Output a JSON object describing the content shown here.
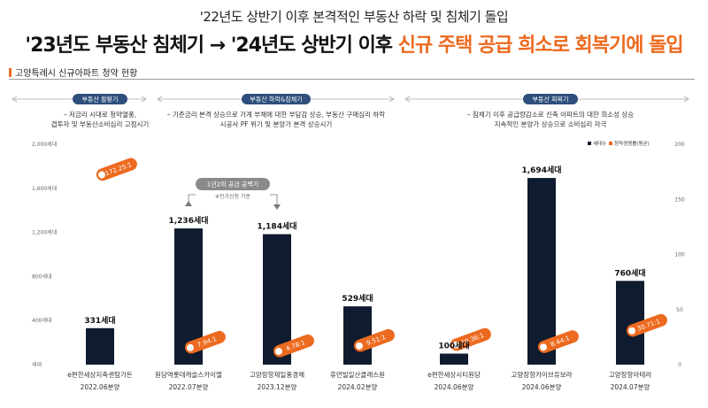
{
  "header": {
    "subtitle": "'22년도 상반기 이후 본격적인 부동산 하락 및 침체기 돌입",
    "headline_main": "'23년도 부동산 침체기 → '24년도 상반기 이후 ",
    "headline_accent": "신규 주택 공급 희소로 회복기에 돌입",
    "section_label": "고양특례시 신규아파트 청약 현황"
  },
  "colors": {
    "accent": "#ec6a1f",
    "bar": "#0f1b2e",
    "pill": "#2e4f7c"
  },
  "phases": [
    {
      "label": "부동산 활황기",
      "desc": [
        "– 저금리 시대로 청약열풍,",
        "갭투자 및 부동산소비심리 고점시기"
      ]
    },
    {
      "label": "부동산 하락&침체기",
      "desc": [
        "– 기준금리 본격 상승으로 가계 부채에 대한 부담감 상승, 부동산 구매심리 하락",
        "시공사 PF 위기 및 분양가 본격 상승시기"
      ]
    },
    {
      "label": "부동산 회복기",
      "desc": [
        "– 침체기 이후 공급량감소로 신축 아파트의 대한 희소성 상승",
        "지속적인 분양가 상승으로 소비심리 자극"
      ]
    }
  ],
  "callout": {
    "title": "1년2의 공급 공백기",
    "sub": "※인가신청 기준"
  },
  "chart_data": {
    "type": "bar",
    "legend": [
      "세대수",
      "청약경쟁률(평균)"
    ],
    "y_left": {
      "ticks": [
        "2,000세대",
        "1,600세대",
        "1,200세대",
        "800세대",
        "400세대",
        "세대"
      ],
      "range": [
        0,
        2000
      ]
    },
    "y_right": {
      "ticks": [
        "200",
        "150",
        "100",
        "50",
        "0"
      ],
      "range": [
        0,
        200
      ]
    },
    "categories": [
      {
        "name": "e편한세상지축센텀가든",
        "date": "2022.06분양"
      },
      {
        "name": "원당역롯데캐슬스카이엘",
        "date": "2022.07분양"
      },
      {
        "name": "고양장항제일풍경채",
        "date": "2023.12분양"
      },
      {
        "name": "휴먼빌일산클래스원",
        "date": "2024.02분양"
      },
      {
        "name": "e편한세상시티원당",
        "date": "2024.06분양"
      },
      {
        "name": "고양장항카이브유보라",
        "date": "2024.06분양"
      },
      {
        "name": "고양장항아테라",
        "date": "2024.07분양"
      }
    ],
    "values": [
      331,
      1236,
      1184,
      529,
      100,
      1694,
      760
    ],
    "value_labels": [
      "331세대",
      "1,236세대",
      "1,184세대",
      "529세대",
      "100세대",
      "1,694세대",
      "760세대"
    ],
    "rates": [
      172.25,
      7.94,
      4.78,
      9.51,
      10.36,
      8.44,
      30.71
    ],
    "rate_labels": [
      "172.25:1",
      "7.94:1",
      "4.78:1",
      "9.51:1",
      "10.36:1",
      "8.44:1",
      "30.71:1"
    ]
  }
}
